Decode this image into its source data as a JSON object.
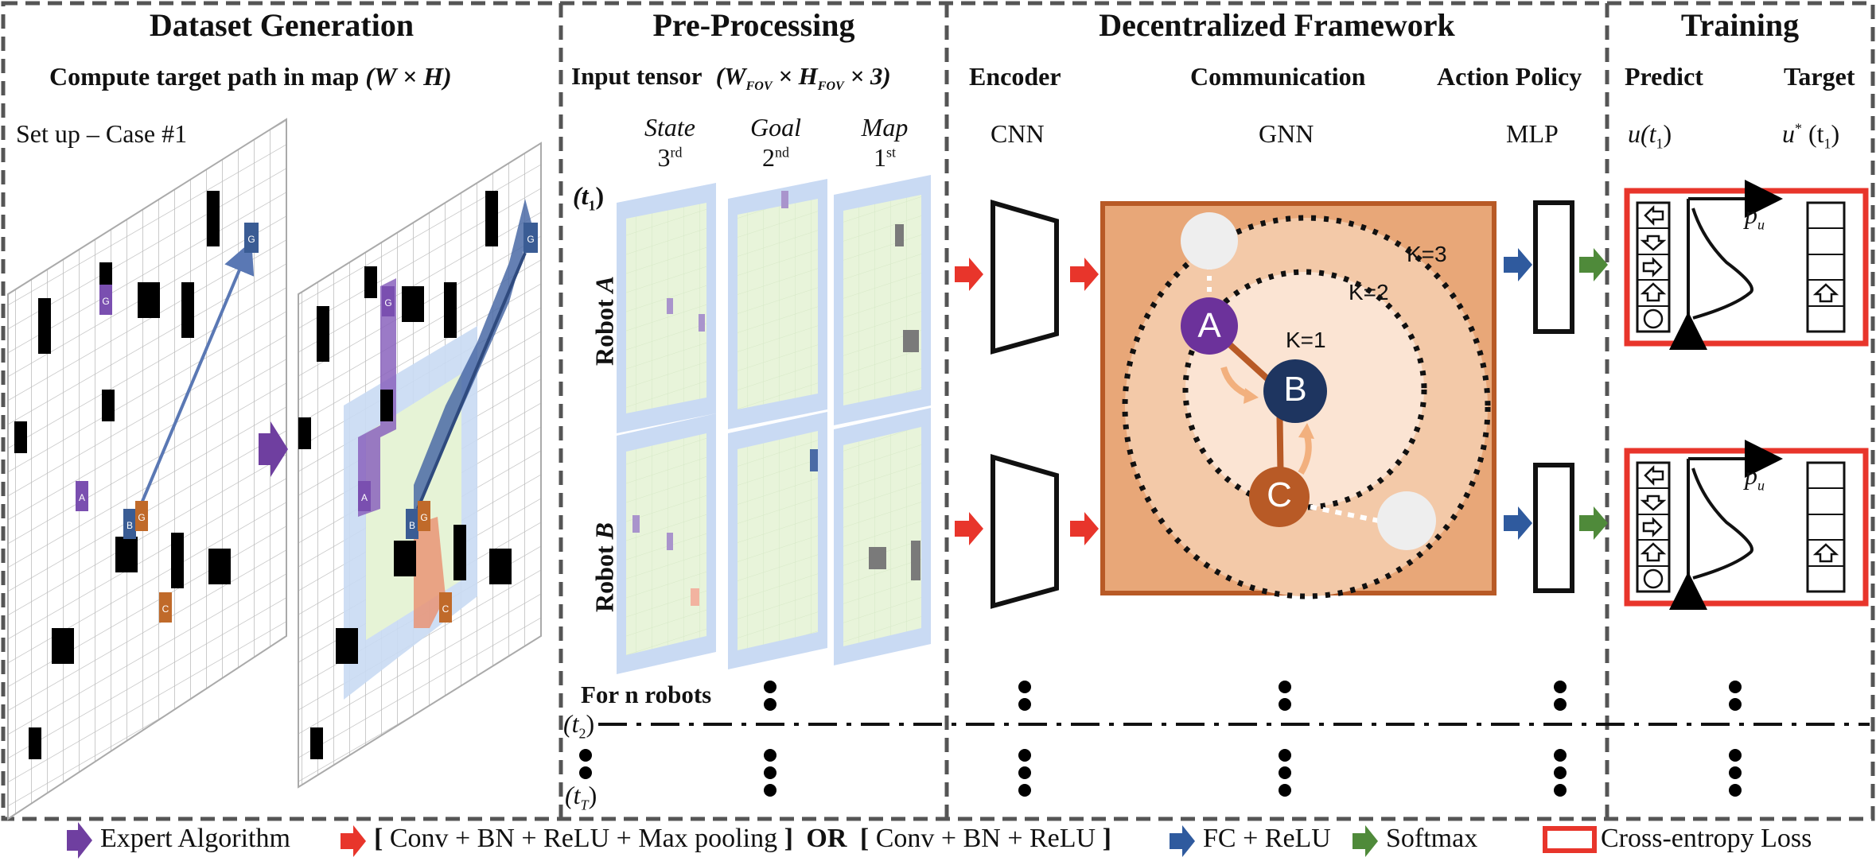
{
  "sections": {
    "dataset": {
      "title": "Dataset Generation",
      "subtitle_text": "Compute target path in map",
      "subtitle_math": "(W × H)",
      "setup_label": "Set up – Case #1",
      "map_labels": [
        "A",
        "B",
        "C",
        "G_A",
        "G_B",
        "G_C"
      ]
    },
    "preprocessing": {
      "title": "Pre-Processing",
      "input_tensor_text": "Input tensor",
      "input_tensor_math": "(W",
      "input_tensor_math_sub1": "FOV",
      "input_tensor_math_mid": " × H",
      "input_tensor_math_sub2": "FOV",
      "input_tensor_math_end": " × 3)",
      "channels": [
        {
          "name": "State",
          "order": "3",
          "order_sup": "rd"
        },
        {
          "name": "Goal",
          "order": "2",
          "order_sup": "nd"
        },
        {
          "name": "Map",
          "order": "1",
          "order_sup": "st"
        }
      ],
      "time_t1": "(t",
      "time_t1_sub": "1",
      "time_t1_end": ")",
      "robot_a": "Robot ",
      "robot_a_var": "A",
      "robot_b": "Robot ",
      "robot_b_var": "B",
      "for_n_robots": "For n robots",
      "time_t2": "(t",
      "time_t2_sub": "2",
      "time_t2_end": ")",
      "time_tT": "(t",
      "time_tT_sub": "T",
      "time_tT_end": ")"
    },
    "framework": {
      "title": "Decentralized Framework",
      "encoder": "Encoder",
      "encoder_net": "CNN",
      "communication": "Communication",
      "communication_net": "GNN",
      "action_policy": "Action Policy",
      "action_net": "MLP",
      "hops": [
        "K=1",
        "K=2",
        "K=3"
      ],
      "nodes": [
        "A",
        "B",
        "C"
      ]
    },
    "training": {
      "title": "Training",
      "predict": "Predict",
      "target": "Target",
      "predict_math": "u(t",
      "predict_math_sub": "1",
      "predict_math_end": ")",
      "target_math": "u",
      "target_math_sup": "*",
      "target_math_rest": " (t",
      "target_math_sub": "1",
      "target_math_end": ")",
      "pu": "p",
      "pu_sub": "u"
    }
  },
  "legend": [
    {
      "label": "Expert Algorithm",
      "color": "#6f3fa0"
    },
    {
      "label_parts": [
        "[ ",
        "Conv + BN + ReLU + Max pooling",
        " ]",
        " OR ",
        "[ ",
        "Conv + BN + ReLU",
        " ]"
      ],
      "color": "#e8352b"
    },
    {
      "label": "FC + ReLU",
      "color": "#2f5a9e"
    },
    {
      "label": "Softmax",
      "color": "#4f8a3a"
    },
    {
      "label": "Cross-entropy Loss",
      "color": "#e8352b"
    }
  ],
  "colors": {
    "purple": "#6f3fa0",
    "navy": "#1e3560",
    "orange": "#b85a26",
    "red": "#e8352b",
    "blue": "#2f5a9e",
    "green": "#4f8a3a",
    "panel": "#e8a778",
    "fov_blue": "#b9d0ee",
    "fov_green": "#e6f3d6"
  }
}
